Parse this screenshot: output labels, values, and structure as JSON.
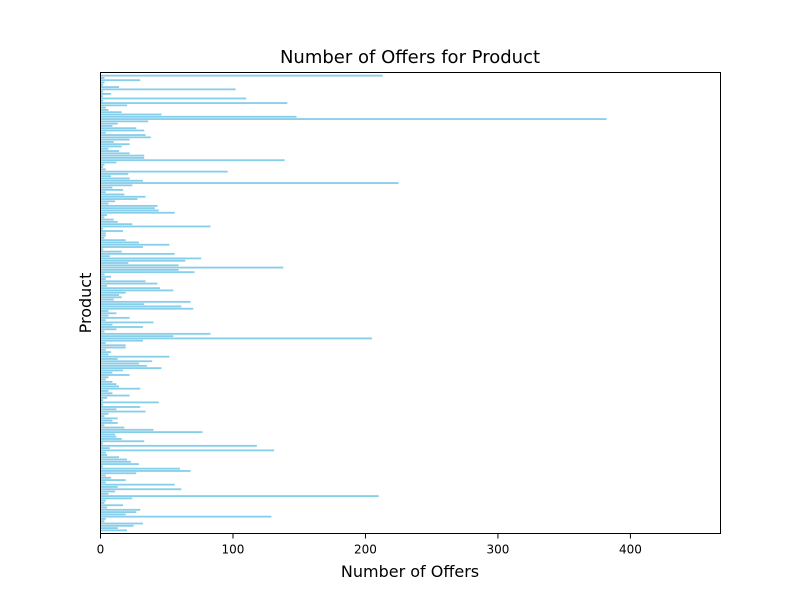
{
  "chart_data": {
    "type": "bar",
    "orientation": "horizontal",
    "title": "Number of Offers for Product",
    "xlabel": "Number of Offers",
    "ylabel": "Product",
    "xlim": [
      0,
      468
    ],
    "xticks": [
      "0",
      "100",
      "200",
      "300",
      "400"
    ],
    "grid": false,
    "bar_color": "#87ceeb",
    "bar_count": 200,
    "values": [
      213,
      3,
      30,
      3,
      2,
      14,
      102,
      2,
      8,
      2,
      110,
      2,
      141,
      20,
      4,
      6,
      16,
      46,
      148,
      382,
      36,
      13,
      9,
      27,
      33,
      4,
      34,
      38,
      22,
      10,
      22,
      16,
      6,
      14,
      22,
      33,
      33,
      139,
      12,
      3,
      2,
      4,
      96,
      21,
      8,
      22,
      32,
      225,
      24,
      9,
      17,
      4,
      18,
      34,
      28,
      11,
      6,
      43,
      41,
      44,
      56,
      5,
      3,
      10,
      13,
      24,
      83,
      2,
      17,
      4,
      4,
      3,
      19,
      29,
      52,
      32,
      2,
      16,
      56,
      7,
      76,
      64,
      21,
      59,
      138,
      59,
      71,
      3,
      8,
      4,
      34,
      43,
      5,
      45,
      55,
      19,
      14,
      16,
      10,
      68,
      33,
      61,
      70,
      6,
      12,
      6,
      22,
      4,
      40,
      9,
      32,
      12,
      3,
      83,
      55,
      205,
      32,
      4,
      19,
      19,
      4,
      8,
      6,
      52,
      13,
      39,
      29,
      35,
      46,
      17,
      9,
      22,
      6,
      4,
      9,
      12,
      14,
      30,
      6,
      9,
      22,
      5,
      2,
      44,
      2,
      30,
      12,
      34,
      6,
      3,
      13,
      9,
      13,
      3,
      18,
      40,
      77,
      11,
      12,
      16,
      33,
      2,
      118,
      7,
      131,
      4,
      5,
      14,
      20,
      23,
      29,
      2,
      60,
      68,
      27,
      4,
      8,
      19,
      4,
      56,
      13,
      61,
      11,
      6,
      210,
      24,
      4,
      3,
      17,
      5,
      30,
      27,
      19,
      129,
      4,
      3,
      32,
      25,
      13,
      20
    ]
  }
}
